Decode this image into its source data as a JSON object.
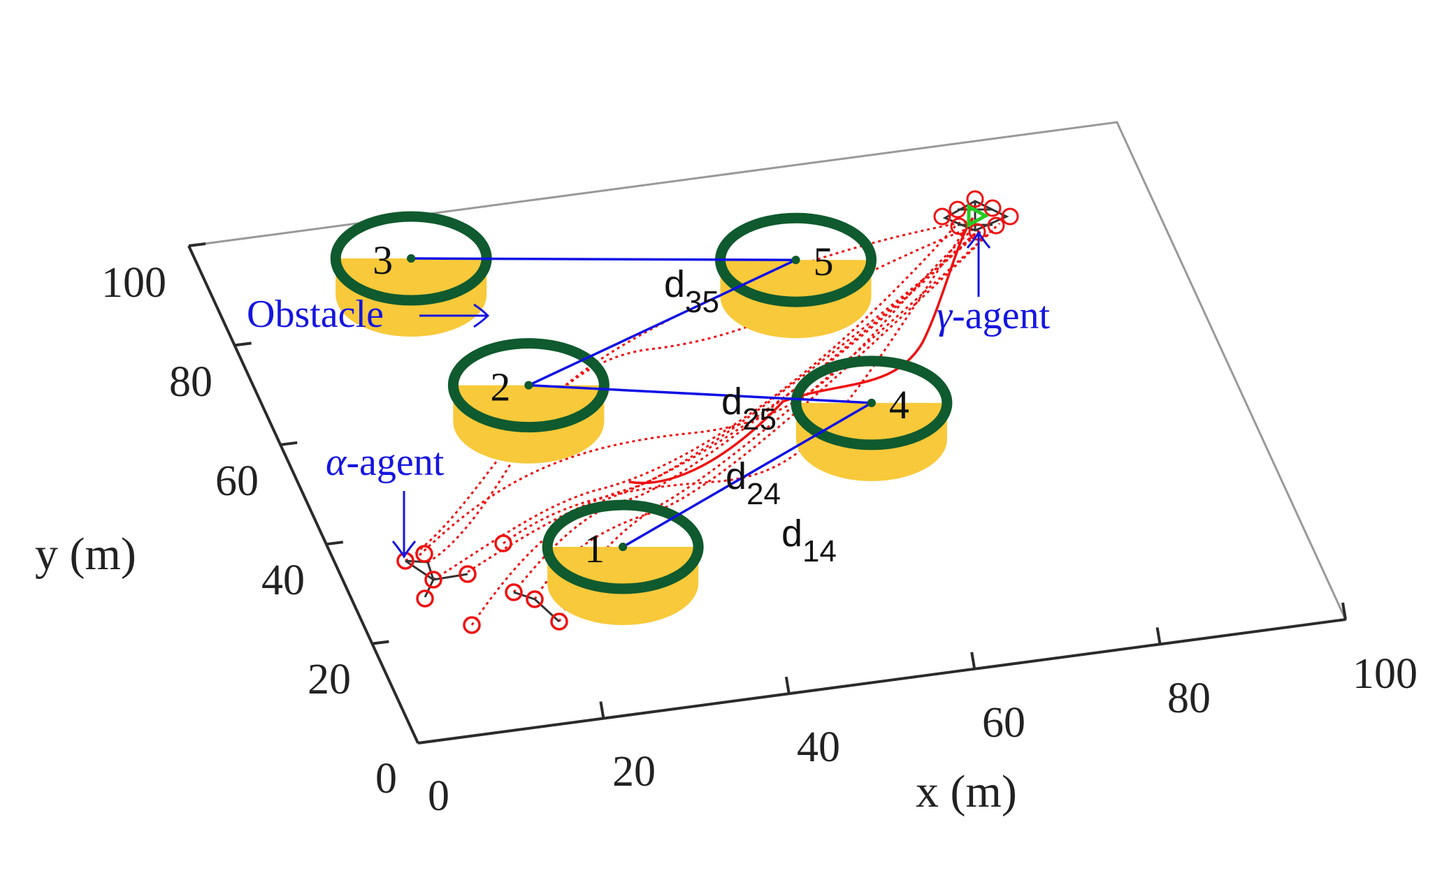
{
  "axes": {
    "x_label": "x (m)",
    "y_label": "y (m)",
    "x_ticks": [
      "0",
      "20",
      "40",
      "60",
      "80",
      "100"
    ],
    "y_ticks": [
      "0",
      "20",
      "40",
      "60",
      "80",
      "100"
    ]
  },
  "obstacles": [
    {
      "id": "1",
      "x": 30,
      "y": 32
    },
    {
      "id": "2",
      "x": 28,
      "y": 65
    },
    {
      "id": "3",
      "x": 22,
      "y": 92
    },
    {
      "id": "4",
      "x": 62,
      "y": 53
    },
    {
      "id": "5",
      "x": 61,
      "y": 82
    }
  ],
  "distances": [
    {
      "from": "1",
      "to": "4",
      "letter": "d",
      "sub": "14"
    },
    {
      "from": "2",
      "to": "4",
      "letter": "d",
      "sub": "24"
    },
    {
      "from": "2",
      "to": "5",
      "letter": "d",
      "sub": "25"
    },
    {
      "from": "3",
      "to": "5",
      "letter": "d",
      "sub": "35"
    }
  ],
  "annotations": {
    "obstacle": "Obstacle",
    "alpha_symbol": "α",
    "alpha_text": "-agent",
    "gamma_symbol": "γ",
    "gamma_text": "-agent"
  },
  "colors": {
    "axis": "#2b2b2b",
    "box": "#999999",
    "ring": "#0f5a2e",
    "cylinder": "#f8c93a",
    "link": "#1010e6",
    "trajectory": "#ee1111",
    "annotation": "#1515e0",
    "gamma_marker": "#22cc22"
  }
}
